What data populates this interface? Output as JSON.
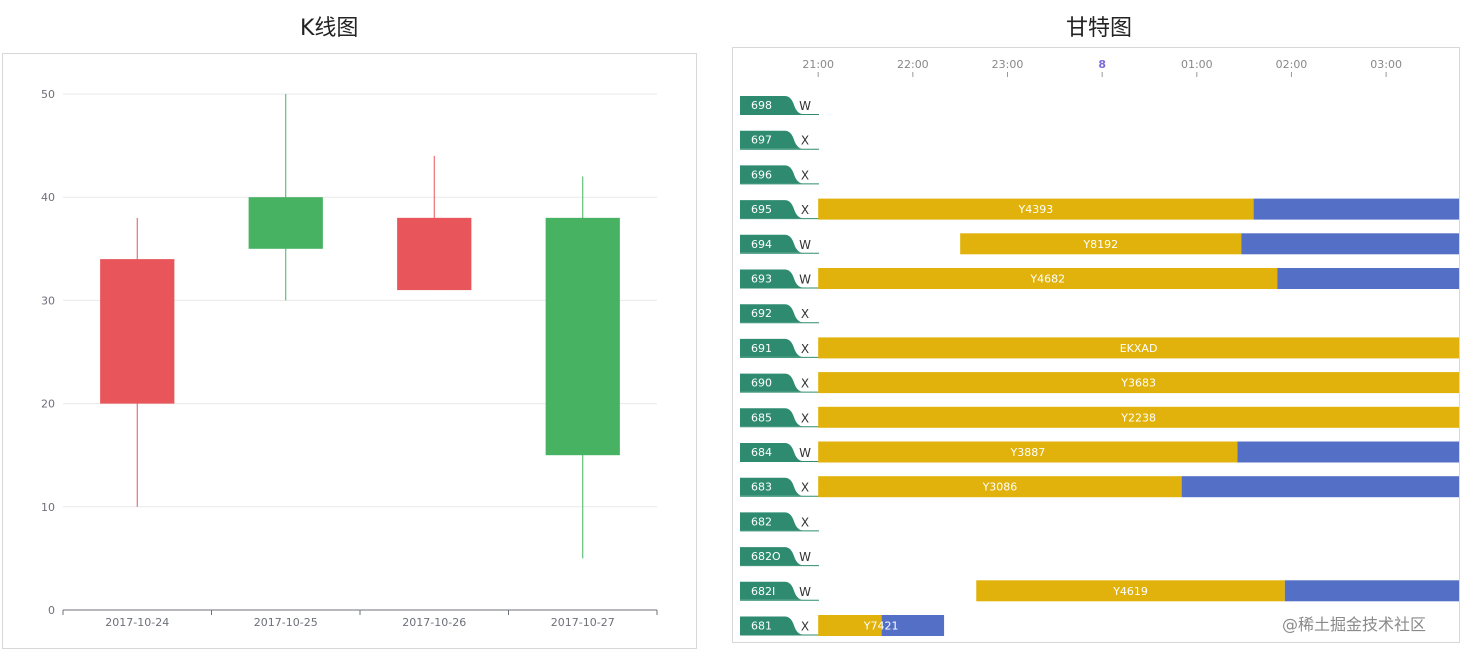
{
  "titles": {
    "kline": "K线图",
    "gantt": "甘特图"
  },
  "watermark": "@稀土掘金技术社区",
  "colors": {
    "up": "#e8555a",
    "down": "#47b262",
    "gridline": "#e9e9e9",
    "axis": "#6e7079",
    "gantt_task": "#e0b20b",
    "gantt_rest": "#5470c6",
    "row_label": "#2e8b6f"
  },
  "chart_data": [
    {
      "type": "candlestick",
      "title": "K线图",
      "categories": [
        "2017-10-24",
        "2017-10-25",
        "2017-10-26",
        "2017-10-27"
      ],
      "ohlc": [
        {
          "open": 20,
          "close": 34,
          "low": 10,
          "high": 38
        },
        {
          "open": 40,
          "close": 35,
          "low": 30,
          "high": 50
        },
        {
          "open": 31,
          "close": 38,
          "low": 31,
          "high": 44
        },
        {
          "open": 38,
          "close": 15,
          "low": 5,
          "high": 42
        }
      ],
      "ylim": [
        0,
        50
      ],
      "yticks": [
        "0",
        "10",
        "20",
        "30",
        "40",
        "50"
      ],
      "grid": true
    },
    {
      "type": "gantt",
      "title": "甘特图",
      "time_ticks": [
        "21:00",
        "22:00",
        "23:00",
        "8",
        "01:00",
        "02:00",
        "03:00"
      ],
      "tick_hours": [
        21,
        22,
        23,
        24,
        25,
        26,
        27
      ],
      "x_range_hours": [
        20.1,
        27.77
      ],
      "rows": [
        {
          "id": "698",
          "flag": "W",
          "task": null
        },
        {
          "id": "697",
          "flag": "X",
          "task": null
        },
        {
          "id": "696",
          "flag": "X",
          "task": null
        },
        {
          "id": "695",
          "flag": "X",
          "task": {
            "label": "Y4393",
            "start": 21.0,
            "split": 25.6,
            "end": 27.77
          }
        },
        {
          "id": "694",
          "flag": "W",
          "task": {
            "label": "Y8192",
            "start": 22.5,
            "split": 25.47,
            "end": 27.77
          }
        },
        {
          "id": "693",
          "flag": "W",
          "task": {
            "label": "Y4682",
            "start": 21.0,
            "split": 25.85,
            "end": 27.77
          }
        },
        {
          "id": "692",
          "flag": "X",
          "task": null
        },
        {
          "id": "691",
          "flag": "X",
          "task": {
            "label": "EKXAD",
            "start": 21.0,
            "split": 27.77,
            "end": 27.77
          }
        },
        {
          "id": "690",
          "flag": "X",
          "task": {
            "label": "Y3683",
            "start": 21.0,
            "split": 27.77,
            "end": 27.77
          }
        },
        {
          "id": "685",
          "flag": "X",
          "task": {
            "label": "Y2238",
            "start": 21.0,
            "split": 27.77,
            "end": 27.77
          }
        },
        {
          "id": "684",
          "flag": "W",
          "task": {
            "label": "Y3887",
            "start": 21.0,
            "split": 25.43,
            "end": 27.77
          }
        },
        {
          "id": "683",
          "flag": "X",
          "task": {
            "label": "Y3086",
            "start": 21.0,
            "split": 24.84,
            "end": 27.77
          }
        },
        {
          "id": "682",
          "flag": "X",
          "task": null
        },
        {
          "id": "682O",
          "flag": "W",
          "task": null
        },
        {
          "id": "682I",
          "flag": "W",
          "task": {
            "label": "Y4619",
            "start": 22.67,
            "split": 25.93,
            "end": 27.77
          }
        },
        {
          "id": "681",
          "flag": "X",
          "task": {
            "label": "Y7421",
            "start": 21.0,
            "split": 21.67,
            "end": 22.33
          }
        }
      ]
    }
  ]
}
